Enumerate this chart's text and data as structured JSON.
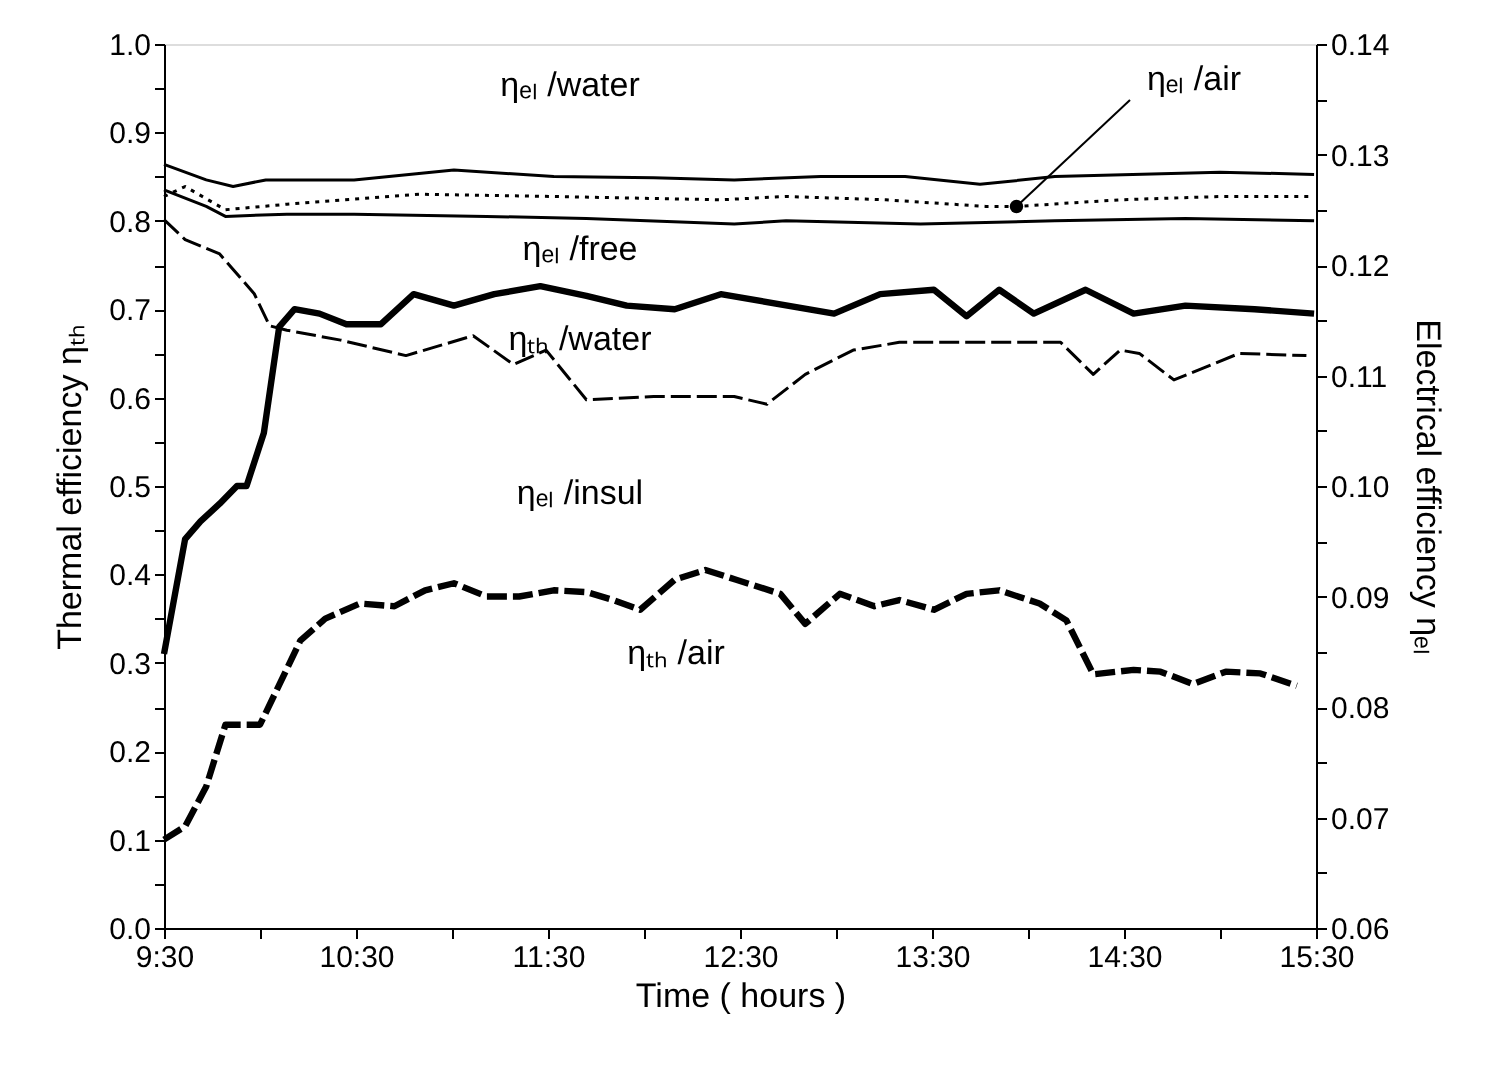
{
  "chart_data": {
    "type": "line",
    "xlabel": "Time ( hours )",
    "ylabel": "Thermal efficiency ηₜₕ",
    "y2label": "Electrical  efficiency ηₑₗ",
    "xlim": [
      9.5,
      15.5
    ],
    "xticks": [
      {
        "value": 9.5,
        "label": "9:30"
      },
      {
        "value": 10,
        "label": null
      },
      {
        "value": 10.5,
        "label": "10:30"
      },
      {
        "value": 11,
        "label": null
      },
      {
        "value": 11.5,
        "label": "11:30"
      },
      {
        "value": 12,
        "label": null
      },
      {
        "value": 12.5,
        "label": "12:30"
      },
      {
        "value": 13,
        "label": null
      },
      {
        "value": 13.5,
        "label": "13:30"
      },
      {
        "value": 14,
        "label": null
      },
      {
        "value": 14.5,
        "label": "14:30"
      },
      {
        "value": 15,
        "label": null
      },
      {
        "value": 15.5,
        "label": "15:30"
      }
    ],
    "ylim": [
      0,
      1
    ],
    "yticks": [
      {
        "value": 0,
        "label": "0.0"
      },
      {
        "value": 0.05,
        "label": null
      },
      {
        "value": 0.1,
        "label": "0.1"
      },
      {
        "value": 0.15,
        "label": null
      },
      {
        "value": 0.2,
        "label": "0.2"
      },
      {
        "value": 0.25,
        "label": null
      },
      {
        "value": 0.3,
        "label": "0.3"
      },
      {
        "value": 0.35,
        "label": null
      },
      {
        "value": 0.4,
        "label": "0.4"
      },
      {
        "value": 0.45,
        "label": null
      },
      {
        "value": 0.5,
        "label": "0.5"
      },
      {
        "value": 0.55,
        "label": null
      },
      {
        "value": 0.6,
        "label": "0.6"
      },
      {
        "value": 0.65,
        "label": null
      },
      {
        "value": 0.7,
        "label": "0.7"
      },
      {
        "value": 0.75,
        "label": null
      },
      {
        "value": 0.8,
        "label": "0.8"
      },
      {
        "value": 0.85,
        "label": null
      },
      {
        "value": 0.9,
        "label": "0.9"
      },
      {
        "value": 0.95,
        "label": null
      },
      {
        "value": 1,
        "label": "1.0"
      }
    ],
    "y2lim": [
      0.06,
      0.14
    ],
    "y2ticks": [
      0.06,
      {
        "value": 0.065,
        "label": null
      },
      0.07,
      {
        "value": 0.075,
        "label": null
      },
      0.08,
      {
        "value": 0.085,
        "label": null
      },
      0.09,
      {
        "value": 0.095,
        "label": null
      },
      {
        "value": 0.1,
        "label": "0.10"
      },
      {
        "value": 0.105,
        "label": null
      },
      0.11,
      {
        "value": 0.115,
        "label": null
      },
      0.12,
      {
        "value": 0.125,
        "label": null
      },
      0.13,
      {
        "value": 0.135,
        "label": null
      },
      0.14
    ],
    "grid": false,
    "legend": false,
    "series": [
      {
        "name": "ηₑₗ /water",
        "color": "#000000",
        "axis": "y2",
        "line_style": "solid",
        "x": [
          9.5,
          9.72,
          9.86,
          10.03,
          10.49,
          11.01,
          11.53,
          12.05,
          12.47,
          12.92,
          13.36,
          13.75,
          14.14,
          15.0,
          15.49
        ],
        "values": [
          0.1291,
          0.1277,
          0.1271,
          0.1277,
          0.1277,
          0.1286,
          0.128,
          0.1279,
          0.1277,
          0.128,
          0.128,
          0.1273,
          0.128,
          0.1284,
          0.1282
        ]
      },
      {
        "name": "ηₑₗ /air",
        "color": "#000000",
        "axis": "y2",
        "line_style": "dotted",
        "x": [
          9.5,
          9.61,
          9.82,
          10.14,
          10.83,
          11.53,
          12.4,
          12.74,
          13.26,
          13.78,
          13.94,
          14.48,
          15.0,
          15.49
        ],
        "values": [
          0.1262,
          0.1271,
          0.125,
          0.1255,
          0.1264,
          0.1262,
          0.1259,
          0.1262,
          0.1259,
          0.1253,
          0.1253,
          0.1259,
          0.1262,
          0.1262
        ]
      },
      {
        "name": "ηₑₗ /free",
        "color": "#000000",
        "axis": "y2",
        "line_style": "solid",
        "x": [
          9.5,
          9.72,
          9.82,
          10.14,
          10.49,
          11.18,
          11.7,
          12.47,
          12.74,
          13.44,
          14.14,
          14.82,
          15.49
        ],
        "values": [
          0.1268,
          0.1253,
          0.1244,
          0.1246,
          0.1246,
          0.1244,
          0.1242,
          0.1237,
          0.124,
          0.1237,
          0.124,
          0.1242,
          0.124
        ]
      },
      {
        "name": "ηₜₕ /water",
        "color": "#000000",
        "line_style": "solid",
        "x": [
          9.5,
          9.61,
          9.69,
          9.79,
          9.88,
          9.93,
          10.02,
          10.1,
          10.18,
          10.31,
          10.45,
          10.63,
          10.8,
          11.01,
          11.22,
          11.46,
          11.7,
          11.91,
          12.16,
          12.4,
          12.99,
          13.23,
          13.51,
          13.68,
          13.85,
          14.03,
          14.3,
          14.55,
          14.82,
          15.18,
          15.49
        ],
        "values": [
          0.31,
          0.44,
          0.46,
          0.48,
          0.5,
          0.5,
          0.56,
          0.68,
          0.7,
          0.695,
          0.683,
          0.683,
          0.717,
          0.704,
          0.717,
          0.726,
          0.715,
          0.704,
          0.7,
          0.717,
          0.695,
          0.717,
          0.722,
          0.692,
          0.722,
          0.695,
          0.722,
          0.695,
          0.704,
          0.7,
          0.695
        ]
      },
      {
        "name": "ηₑₗ /insul",
        "color": "#000000",
        "axis": "y2",
        "line_style": "dashed",
        "x": [
          9.5,
          9.61,
          9.79,
          9.97,
          10.05,
          10.14,
          10.42,
          10.76,
          11.11,
          11.32,
          11.49,
          11.7,
          12.05,
          12.47,
          12.64,
          12.84,
          13.09,
          13.33,
          13.78,
          14.17,
          14.34,
          14.48,
          14.58,
          14.76,
          15.1,
          15.45
        ],
        "values": [
          0.1241,
          0.1223,
          0.121,
          0.1174,
          0.1145,
          0.1141,
          0.1132,
          0.1118,
          0.1136,
          0.111,
          0.1123,
          0.1078,
          0.1081,
          0.1081,
          0.1074,
          0.1101,
          0.1123,
          0.113,
          0.113,
          0.113,
          0.1101,
          0.1123,
          0.112,
          0.1096,
          0.112,
          0.1118
        ]
      },
      {
        "name": "ηₜₕ /air",
        "color": "#000000",
        "line_style": "dashed",
        "x": [
          9.5,
          9.61,
          9.72,
          9.82,
          10.0,
          10.1,
          10.21,
          10.34,
          10.52,
          10.7,
          10.86,
          11.01,
          11.18,
          11.35,
          11.53,
          11.7,
          11.84,
          11.98,
          12.16,
          12.32,
          12.48,
          12.71,
          12.84,
          13.02,
          13.2,
          13.33,
          13.51,
          13.68,
          13.85,
          14.06,
          14.2,
          14.34,
          14.55,
          14.69,
          14.86,
          15.03,
          15.21,
          15.4
        ],
        "values": [
          0.1,
          0.115,
          0.16,
          0.23,
          0.23,
          0.275,
          0.325,
          0.35,
          0.367,
          0.364,
          0.382,
          0.39,
          0.375,
          0.375,
          0.382,
          0.38,
          0.371,
          0.36,
          0.394,
          0.405,
          0.394,
          0.378,
          0.344,
          0.378,
          0.364,
          0.371,
          0.36,
          0.378,
          0.382,
          0.367,
          0.348,
          0.287,
          0.292,
          0.29,
          0.276,
          0.29,
          0.288,
          0.274
        ]
      }
    ]
  }
}
